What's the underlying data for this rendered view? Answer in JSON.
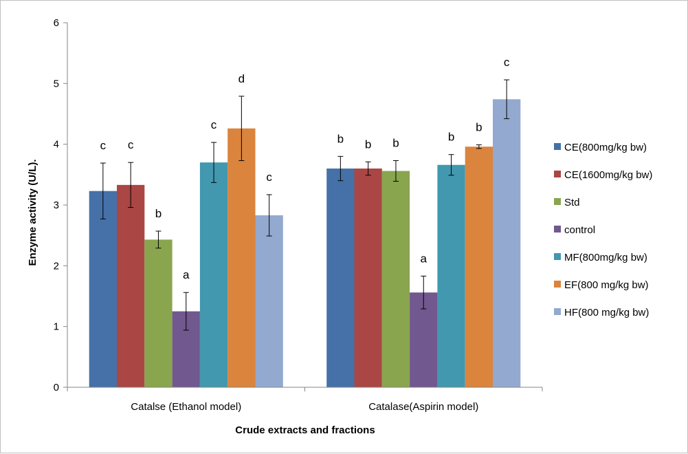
{
  "chart_data": {
    "type": "bar",
    "title": "",
    "xlabel": "Crude  extracts and fractions",
    "ylabel": "Enzyme activity (U/L).",
    "ylim": [
      0,
      6
    ],
    "yticks": [
      "0",
      "1",
      "2",
      "3",
      "4",
      "5",
      "6"
    ],
    "grid": false,
    "legend_position": "right",
    "categories": [
      "Catalse (Ethanol model)",
      "Catalase(Aspirin model)"
    ],
    "series": [
      {
        "name": "CE(800mg/kg bw)",
        "color": "#4571a8",
        "values": [
          3.23,
          3.6
        ],
        "errors": [
          0.46,
          0.2
        ],
        "labels": [
          "c",
          "b"
        ]
      },
      {
        "name": "CE(1600mg/kg bw)",
        "color": "#aa4644",
        "values": [
          3.33,
          3.6
        ],
        "errors": [
          0.37,
          0.11
        ],
        "labels": [
          "c",
          "b"
        ]
      },
      {
        "name": "Std",
        "color": "#89a54e",
        "values": [
          2.43,
          3.56
        ],
        "errors": [
          0.14,
          0.17
        ],
        "labels": [
          "b",
          "b"
        ]
      },
      {
        "name": "control",
        "color": "#71588f",
        "values": [
          1.25,
          1.56
        ],
        "errors": [
          0.31,
          0.27
        ],
        "labels": [
          "a",
          "a"
        ]
      },
      {
        "name": "MF(800mg/kg bw)",
        "color": "#4198af",
        "values": [
          3.7,
          3.66
        ],
        "errors": [
          0.33,
          0.17
        ],
        "labels": [
          "c",
          "b"
        ]
      },
      {
        "name": "EF(800 mg/kg bw)",
        "color": "#db843d",
        "values": [
          4.26,
          3.96
        ],
        "errors": [
          0.53,
          0.03
        ],
        "labels": [
          "d",
          "b"
        ]
      },
      {
        "name": "HF(800 mg/kg bw)",
        "color": "#93a9cf",
        "values": [
          2.83,
          4.74
        ],
        "errors": [
          0.34,
          0.32
        ],
        "labels": [
          "c",
          "c"
        ]
      }
    ]
  }
}
